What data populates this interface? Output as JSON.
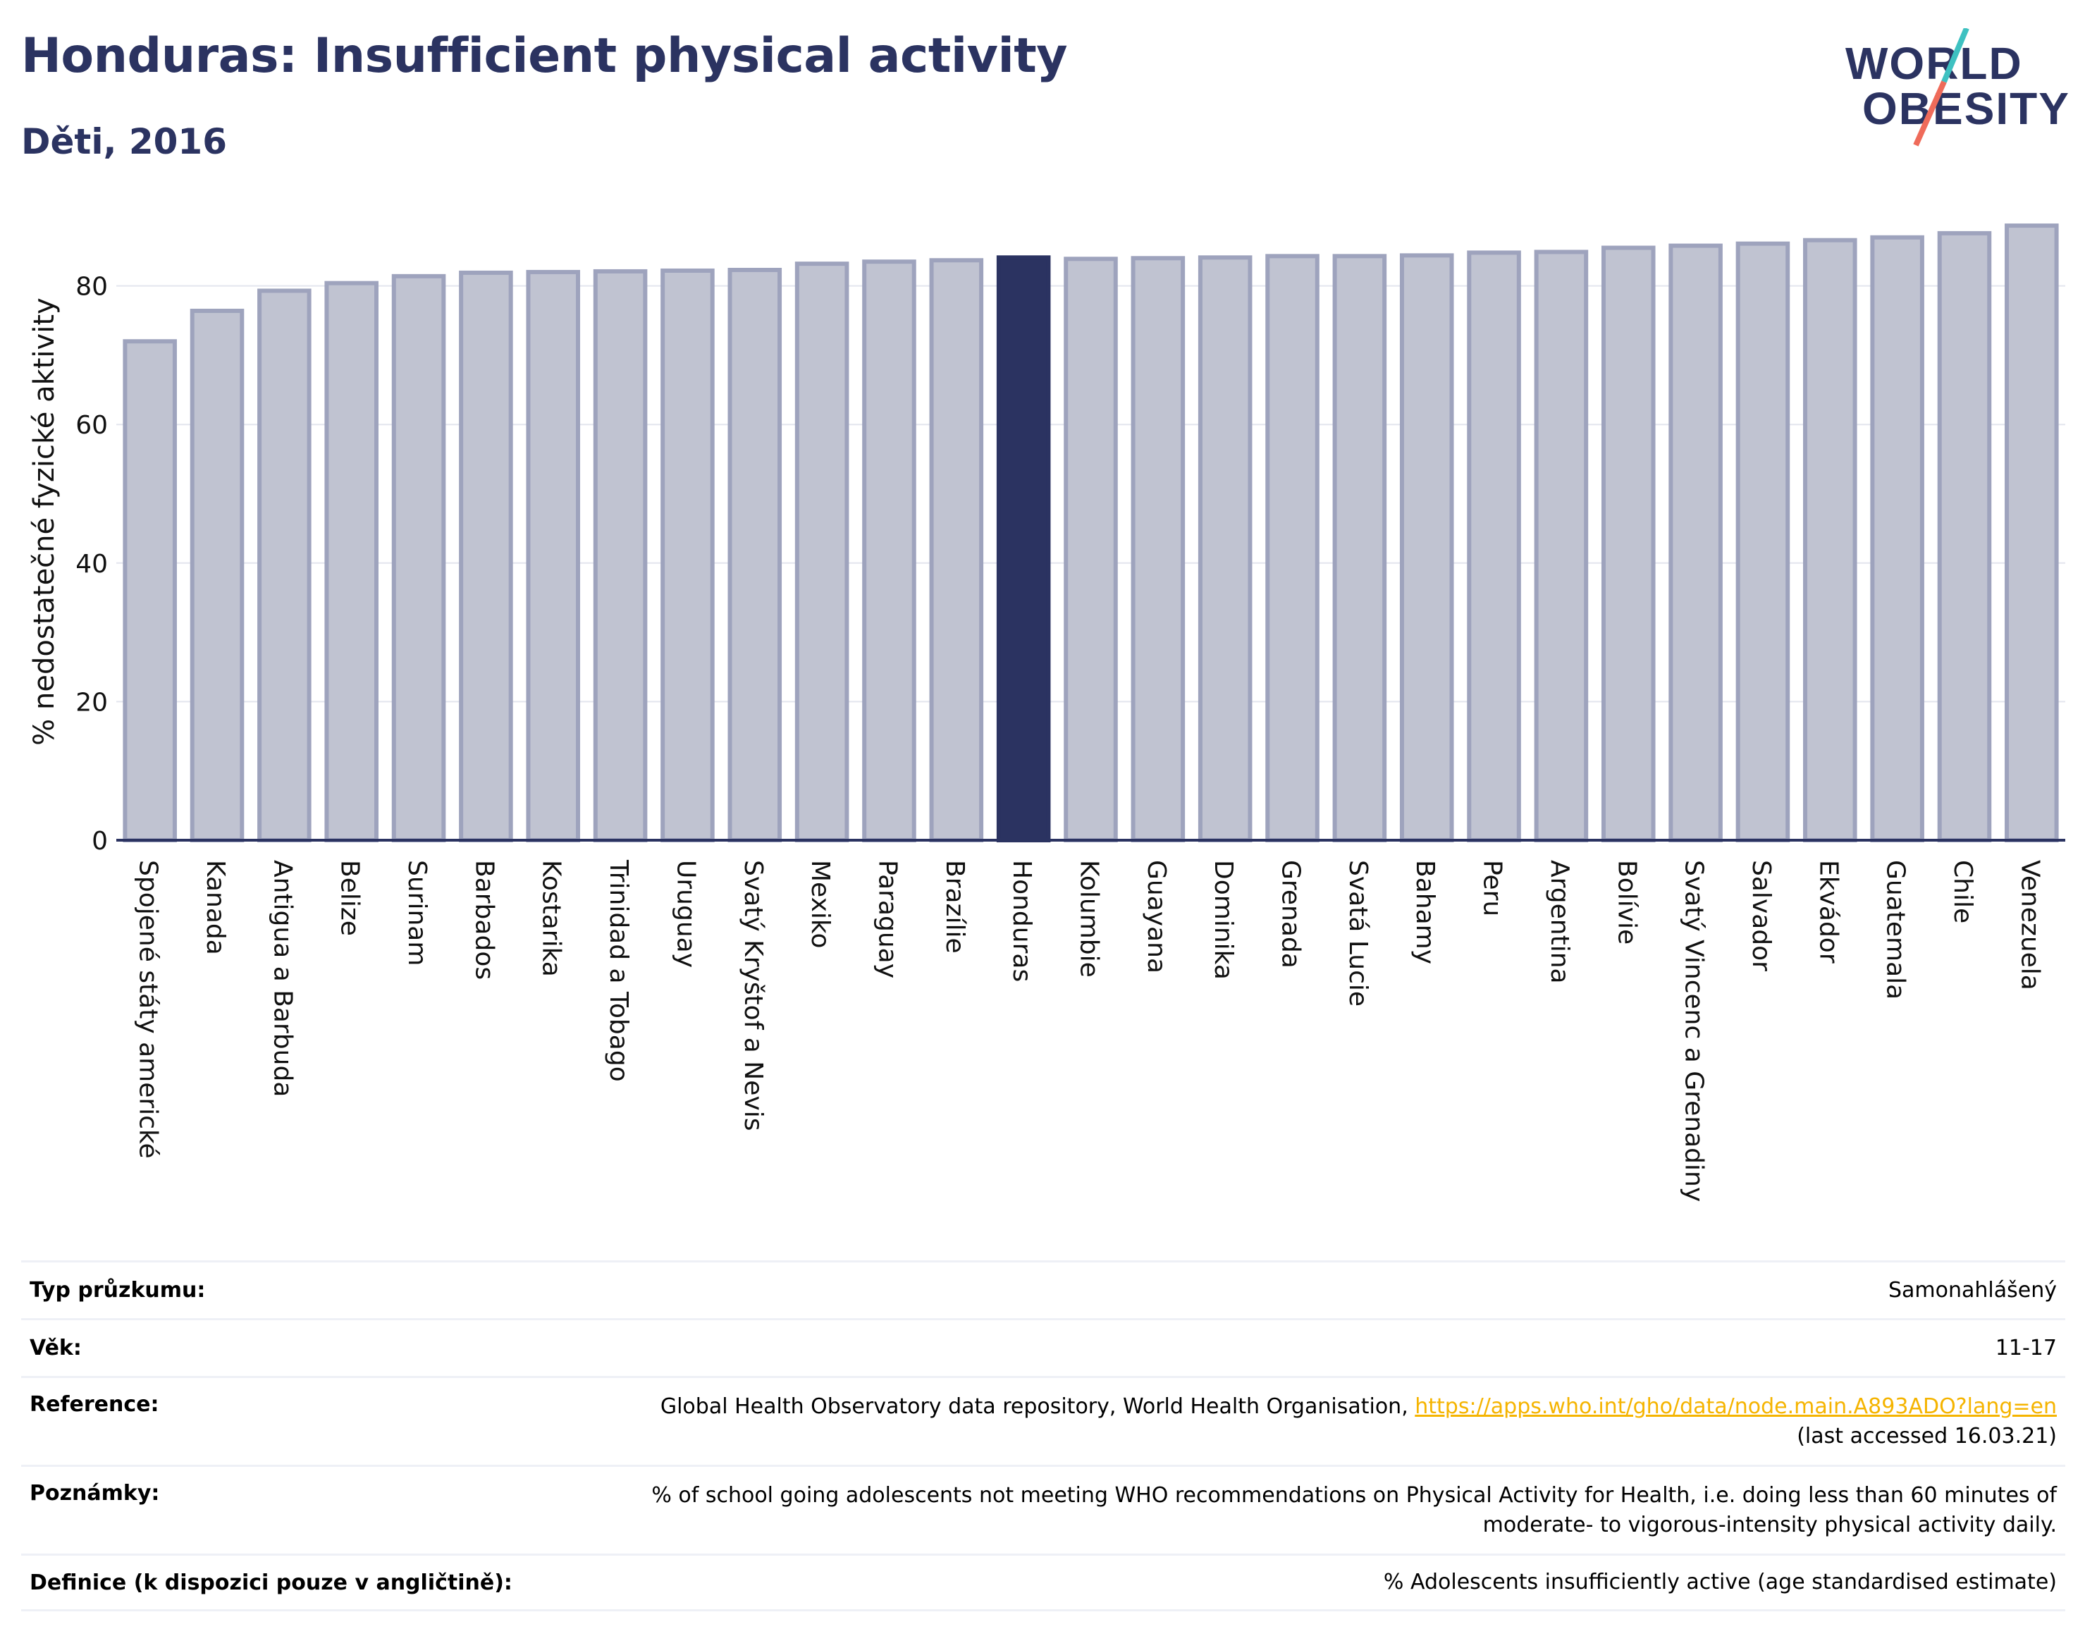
{
  "header": {
    "title": "Honduras: Insufficient physical activity",
    "subtitle": "Děti, 2016",
    "logo_line1": "WORLD",
    "logo_line2": "OBESITY"
  },
  "colors": {
    "bar": "#c0c3d1",
    "bar_border": "#9ea3bd",
    "highlight": "#2b3361",
    "title": "#2b3361",
    "logo_teal": "#3ec1c1",
    "logo_coral": "#ef6b5a"
  },
  "chart_data": {
    "type": "bar",
    "title": "Honduras: Insufficient physical activity",
    "subtitle": "Děti, 2016",
    "xlabel": "",
    "ylabel": "% nedostatečné fyzické aktivity",
    "ylim": [
      0,
      90
    ],
    "yticks": [
      0,
      20,
      40,
      60,
      80
    ],
    "grid": true,
    "highlight": "Honduras",
    "categories": [
      "Spojené státy americké",
      "Kanada",
      "Antigua a Barbuda",
      "Belize",
      "Surinam",
      "Barbados",
      "Kostarika",
      "Trinidad a Tobago",
      "Uruguay",
      "Svatý Kryštof a Nevis",
      "Mexiko",
      "Paraguay",
      "Brazílie",
      "Honduras",
      "Kolumbie",
      "Guayana",
      "Dominika",
      "Grenada",
      "Svatá Lucie",
      "Bahamy",
      "Peru",
      "Argentina",
      "Bolívie",
      "Svatý Vincenc a Grenadiny",
      "Salvador",
      "Ekvádor",
      "Guatemala",
      "Chile",
      "Venezuela"
    ],
    "values": [
      72.0,
      76.4,
      79.3,
      80.4,
      81.4,
      81.9,
      82.0,
      82.1,
      82.2,
      82.3,
      83.2,
      83.5,
      83.7,
      84.1,
      83.9,
      84.0,
      84.1,
      84.3,
      84.3,
      84.4,
      84.8,
      84.9,
      85.5,
      85.8,
      86.1,
      86.6,
      87.0,
      87.6,
      88.7
    ]
  },
  "info_table": [
    {
      "label": "Typ průzkumu:",
      "value": "Samonahlášený"
    },
    {
      "label": "Věk:",
      "value": "11-17"
    },
    {
      "label": "Reference:",
      "value": "Global Health Observatory data repository, World Health Organisation, ",
      "link": "https://apps.who.int/gho/data/node.main.A893ADO?lang=en",
      "value2": "(last accessed 16.03.21)"
    },
    {
      "label": "Poznámky:",
      "value": "% of school going adolescents not meeting WHO recommendations on Physical Activity for Health, i.e. doing less than 60 minutes of",
      "value2": "moderate- to vigorous-intensity physical activity daily."
    },
    {
      "label": "Definice (k dispozici pouze v angličtině):",
      "value": "% Adolescents insufficiently active (age standardised estimate)"
    }
  ]
}
